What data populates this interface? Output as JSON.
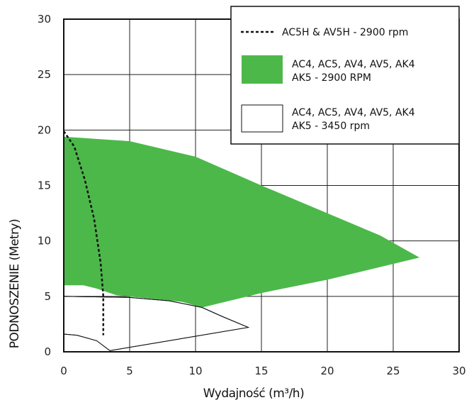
{
  "chart_data": {
    "type": "area",
    "xlabel": "Wydajność (m³/h)",
    "ylabel": "PODNOSZENIE (Metry)",
    "xlim": [
      0,
      30
    ],
    "ylim": [
      0,
      30
    ],
    "xticks": [
      "0",
      "5",
      "10",
      "15",
      "20",
      "25",
      "30"
    ],
    "yticks": [
      "0",
      "5",
      "10",
      "15",
      "20",
      "25",
      "30"
    ],
    "grid": true,
    "legend_position": "top-right",
    "series": [
      {
        "name": "AC5H & AV5H - 2900 rpm",
        "style": "dashed-line",
        "color": "#111111",
        "points": [
          [
            0,
            19.9
          ],
          [
            0.8,
            18.5
          ],
          [
            1.6,
            15.5
          ],
          [
            2.3,
            12.0
          ],
          [
            2.8,
            8.0
          ],
          [
            3.0,
            5.0
          ],
          [
            3.0,
            1.5
          ]
        ]
      },
      {
        "name": "AC4, AC5, AV4, AV5, AK4 AK5 - 2900 RPM",
        "style": "filled-area",
        "color": "#4cb84a",
        "upper": [
          [
            0,
            19.4
          ],
          [
            5,
            19.0
          ],
          [
            10,
            17.6
          ],
          [
            15,
            15.0
          ],
          [
            20,
            12.5
          ],
          [
            24,
            10.5
          ],
          [
            27,
            8.5
          ]
        ],
        "lower": [
          [
            27,
            8.5
          ],
          [
            20,
            6.5
          ],
          [
            15,
            5.3
          ],
          [
            10.5,
            4.0
          ],
          [
            9,
            4.5
          ],
          [
            4,
            5.1
          ],
          [
            2.5,
            5.7
          ],
          [
            1.5,
            6.0
          ],
          [
            0,
            6.0
          ]
        ]
      },
      {
        "name": "AC4, AC5, AV4, AV5, AK4 AK5 - 3450 rpm",
        "style": "outlined-area",
        "color": "#ffffff",
        "upper": [
          [
            0,
            5.0
          ],
          [
            5,
            4.9
          ],
          [
            8,
            4.6
          ],
          [
            10.5,
            4.0
          ],
          [
            12,
            3.2
          ],
          [
            14,
            2.2
          ]
        ],
        "lower": [
          [
            14,
            2.2
          ],
          [
            3.5,
            0.1
          ],
          [
            2.5,
            1.0
          ],
          [
            1.0,
            1.5
          ],
          [
            0,
            1.6
          ]
        ]
      }
    ]
  }
}
